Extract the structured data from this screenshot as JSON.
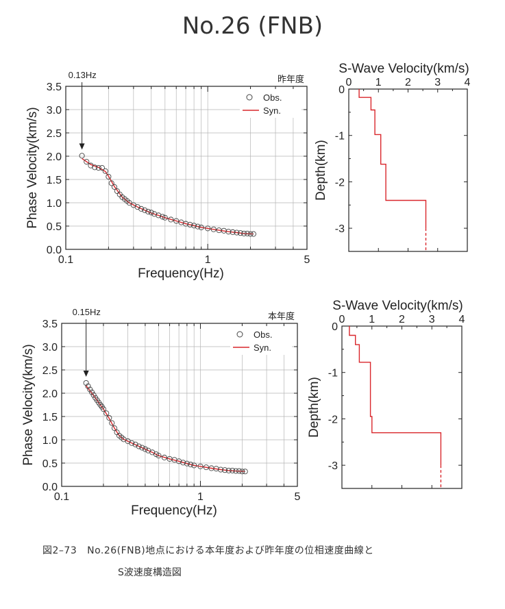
{
  "page_title": "No.26 (FNB)",
  "caption": {
    "label": "図2–73",
    "line1": "No.26(FNB)地点における本年度および昨年度の位相速度曲線と",
    "line2": "S波速度構造図"
  },
  "colors": {
    "syn": "#d9262b",
    "obs": "#444444",
    "grid": "#b5b5b5",
    "axis": "#222222"
  },
  "chart_data": [
    {
      "type": "scatter",
      "panel": "dispersion-last-year",
      "corner_label": "昨年度",
      "annotation": "0.13Hz",
      "annotation_x": 0.13,
      "xlabel": "Frequency(Hz)",
      "ylabel": "Phase Velocity(km/s)",
      "xscale": "log",
      "xlim": [
        0.1,
        5
      ],
      "ylim": [
        0,
        3.5
      ],
      "xticks": [
        {
          "v": 0.1,
          "t": "0.1"
        },
        {
          "v": 1,
          "t": "1"
        },
        {
          "v": 5,
          "t": "5"
        }
      ],
      "yticks": [
        0,
        0.5,
        1,
        1.5,
        2,
        2.5,
        3,
        3.5
      ],
      "legend": [
        "Obs.",
        "Syn."
      ],
      "obs": [
        [
          0.13,
          2.01
        ],
        [
          0.14,
          1.88
        ],
        [
          0.15,
          1.8
        ],
        [
          0.16,
          1.76
        ],
        [
          0.17,
          1.75
        ],
        [
          0.18,
          1.75
        ],
        [
          0.19,
          1.68
        ],
        [
          0.2,
          1.56
        ],
        [
          0.21,
          1.42
        ],
        [
          0.22,
          1.34
        ],
        [
          0.23,
          1.25
        ],
        [
          0.24,
          1.18
        ],
        [
          0.25,
          1.12
        ],
        [
          0.26,
          1.08
        ],
        [
          0.27,
          1.04
        ],
        [
          0.28,
          1.0
        ],
        [
          0.3,
          0.95
        ],
        [
          0.32,
          0.91
        ],
        [
          0.34,
          0.87
        ],
        [
          0.36,
          0.84
        ],
        [
          0.38,
          0.81
        ],
        [
          0.4,
          0.79
        ],
        [
          0.42,
          0.76
        ],
        [
          0.45,
          0.73
        ],
        [
          0.48,
          0.7
        ],
        [
          0.5,
          0.68
        ],
        [
          0.55,
          0.64
        ],
        [
          0.6,
          0.61
        ],
        [
          0.65,
          0.58
        ],
        [
          0.7,
          0.55
        ],
        [
          0.75,
          0.53
        ],
        [
          0.8,
          0.51
        ],
        [
          0.85,
          0.49
        ],
        [
          0.9,
          0.47
        ],
        [
          1.0,
          0.45
        ],
        [
          1.1,
          0.43
        ],
        [
          1.2,
          0.41
        ],
        [
          1.3,
          0.4
        ],
        [
          1.4,
          0.38
        ],
        [
          1.5,
          0.37
        ],
        [
          1.6,
          0.36
        ],
        [
          1.7,
          0.35
        ],
        [
          1.8,
          0.34
        ],
        [
          1.9,
          0.34
        ],
        [
          2.0,
          0.33
        ],
        [
          2.1,
          0.33
        ]
      ],
      "syn": [
        [
          0.13,
          1.95
        ],
        [
          0.15,
          1.82
        ],
        [
          0.17,
          1.76
        ],
        [
          0.19,
          1.67
        ],
        [
          0.2,
          1.57
        ],
        [
          0.22,
          1.35
        ],
        [
          0.25,
          1.12
        ],
        [
          0.28,
          1.0
        ],
        [
          0.32,
          0.91
        ],
        [
          0.36,
          0.84
        ],
        [
          0.4,
          0.78
        ],
        [
          0.45,
          0.73
        ],
        [
          0.5,
          0.68
        ],
        [
          0.6,
          0.61
        ],
        [
          0.7,
          0.55
        ],
        [
          0.8,
          0.51
        ],
        [
          0.9,
          0.47
        ],
        [
          1.0,
          0.45
        ],
        [
          1.2,
          0.41
        ],
        [
          1.4,
          0.38
        ],
        [
          1.6,
          0.36
        ],
        [
          1.8,
          0.34
        ],
        [
          2.1,
          0.33
        ]
      ]
    },
    {
      "type": "line",
      "panel": "profile-last-year",
      "title": "S-Wave Velocity(km/s)",
      "ylabel": "Depth(km)",
      "xlim": [
        0,
        4
      ],
      "ylim": [
        -3.5,
        0
      ],
      "xticks": [
        0,
        1,
        2,
        3,
        4
      ],
      "yticks": [
        0,
        -1,
        -2,
        -3
      ],
      "solid": [
        [
          0.35,
          0
        ],
        [
          0.35,
          -0.18
        ],
        [
          0.75,
          -0.18
        ],
        [
          0.75,
          -0.45
        ],
        [
          0.88,
          -0.45
        ],
        [
          0.88,
          -0.98
        ],
        [
          1.08,
          -0.98
        ],
        [
          1.08,
          -1.62
        ],
        [
          1.25,
          -1.62
        ],
        [
          1.25,
          -2.4
        ],
        [
          2.6,
          -2.4
        ],
        [
          2.6,
          -3.0
        ]
      ],
      "dashed": [
        [
          2.6,
          -3.0
        ],
        [
          2.6,
          -3.5
        ]
      ]
    },
    {
      "type": "scatter",
      "panel": "dispersion-this-year",
      "corner_label": "本年度",
      "annotation": "0.15Hz",
      "annotation_x": 0.15,
      "xlabel": "Frequency(Hz)",
      "ylabel": "Phase Velocity(km/s)",
      "xscale": "log",
      "xlim": [
        0.1,
        5
      ],
      "ylim": [
        0,
        3.5
      ],
      "xticks": [
        {
          "v": 0.1,
          "t": "0.1"
        },
        {
          "v": 1,
          "t": "1"
        },
        {
          "v": 5,
          "t": "5"
        }
      ],
      "yticks": [
        0,
        0.5,
        1,
        1.5,
        2,
        2.5,
        3,
        3.5
      ],
      "legend": [
        "Obs.",
        "Syn."
      ],
      "obs": [
        [
          0.15,
          2.22
        ],
        [
          0.155,
          2.15
        ],
        [
          0.16,
          2.08
        ],
        [
          0.165,
          2.02
        ],
        [
          0.17,
          1.96
        ],
        [
          0.175,
          1.9
        ],
        [
          0.18,
          1.85
        ],
        [
          0.185,
          1.8
        ],
        [
          0.19,
          1.75
        ],
        [
          0.195,
          1.71
        ],
        [
          0.2,
          1.66
        ],
        [
          0.21,
          1.57
        ],
        [
          0.22,
          1.47
        ],
        [
          0.23,
          1.36
        ],
        [
          0.24,
          1.25
        ],
        [
          0.25,
          1.16
        ],
        [
          0.26,
          1.09
        ],
        [
          0.27,
          1.05
        ],
        [
          0.28,
          1.01
        ],
        [
          0.3,
          0.97
        ],
        [
          0.32,
          0.93
        ],
        [
          0.34,
          0.9
        ],
        [
          0.36,
          0.86
        ],
        [
          0.38,
          0.83
        ],
        [
          0.4,
          0.8
        ],
        [
          0.42,
          0.77
        ],
        [
          0.45,
          0.73
        ],
        [
          0.48,
          0.69
        ],
        [
          0.5,
          0.66
        ],
        [
          0.55,
          0.62
        ],
        [
          0.6,
          0.59
        ],
        [
          0.65,
          0.57
        ],
        [
          0.7,
          0.54
        ],
        [
          0.75,
          0.51
        ],
        [
          0.8,
          0.49
        ],
        [
          0.85,
          0.47
        ],
        [
          0.9,
          0.45
        ],
        [
          1.0,
          0.43
        ],
        [
          1.1,
          0.41
        ],
        [
          1.2,
          0.39
        ],
        [
          1.3,
          0.38
        ],
        [
          1.4,
          0.36
        ],
        [
          1.5,
          0.35
        ],
        [
          1.6,
          0.34
        ],
        [
          1.7,
          0.34
        ],
        [
          1.8,
          0.33
        ],
        [
          1.9,
          0.33
        ],
        [
          2.0,
          0.32
        ],
        [
          2.1,
          0.32
        ]
      ],
      "syn": [
        [
          0.15,
          2.16
        ],
        [
          0.17,
          1.95
        ],
        [
          0.19,
          1.75
        ],
        [
          0.2,
          1.66
        ],
        [
          0.22,
          1.46
        ],
        [
          0.24,
          1.25
        ],
        [
          0.26,
          1.09
        ],
        [
          0.28,
          1.01
        ],
        [
          0.32,
          0.93
        ],
        [
          0.36,
          0.86
        ],
        [
          0.4,
          0.8
        ],
        [
          0.45,
          0.73
        ],
        [
          0.5,
          0.66
        ],
        [
          0.6,
          0.59
        ],
        [
          0.7,
          0.54
        ],
        [
          0.8,
          0.49
        ],
        [
          0.9,
          0.45
        ],
        [
          1.0,
          0.43
        ],
        [
          1.2,
          0.39
        ],
        [
          1.4,
          0.36
        ],
        [
          1.6,
          0.34
        ],
        [
          1.8,
          0.33
        ],
        [
          2.1,
          0.32
        ]
      ]
    },
    {
      "type": "line",
      "panel": "profile-this-year",
      "title": "S-Wave Velocity(km/s)",
      "ylabel": "Depth(km)",
      "xlim": [
        0,
        4
      ],
      "ylim": [
        -3.5,
        0
      ],
      "xticks": [
        0,
        1,
        2,
        3,
        4
      ],
      "yticks": [
        0,
        -1,
        -2,
        -3
      ],
      "solid": [
        [
          0.25,
          0
        ],
        [
          0.25,
          -0.2
        ],
        [
          0.45,
          -0.2
        ],
        [
          0.45,
          -0.4
        ],
        [
          0.58,
          -0.4
        ],
        [
          0.58,
          -0.78
        ],
        [
          0.95,
          -0.78
        ],
        [
          0.95,
          -1.95
        ],
        [
          1.0,
          -1.95
        ],
        [
          1.0,
          -2.3
        ],
        [
          3.3,
          -2.3
        ],
        [
          3.3,
          -3.0
        ]
      ],
      "dashed": [
        [
          3.3,
          -3.0
        ],
        [
          3.3,
          -3.5
        ]
      ]
    }
  ]
}
